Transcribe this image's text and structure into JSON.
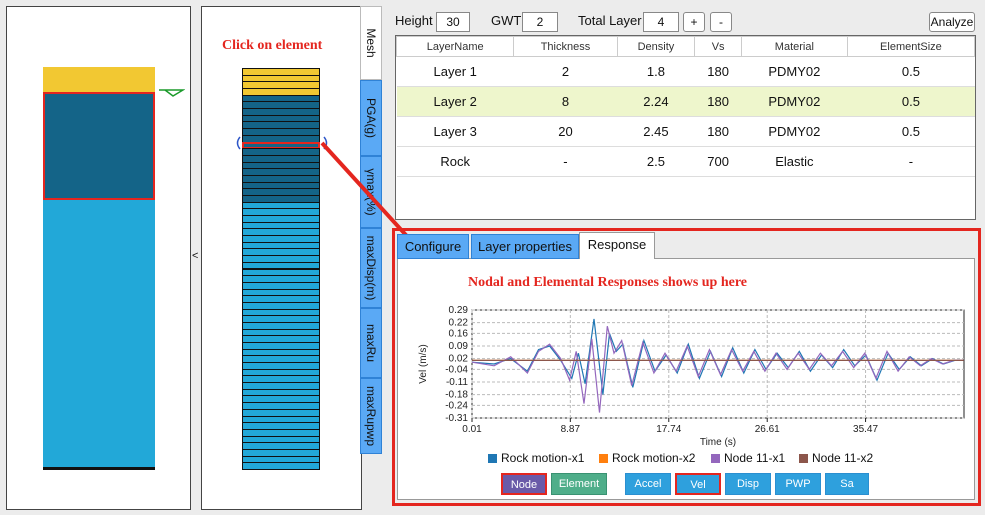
{
  "top_bar": {
    "height_label": "Height",
    "height_value": "30",
    "gwt_label": "GWT",
    "gwt_value": "2",
    "total_layer_label": "Total Layer",
    "total_layer_value": "4",
    "add_label": "+",
    "remove_label": "-",
    "analyze_label": "Analyze"
  },
  "splitter": {
    "collapse_label": "<"
  },
  "annotations": {
    "click_element": "Click on element",
    "responses_here": "Nodal and Elemental Responses shows up here"
  },
  "side_tabs": [
    "Mesh",
    "PGA(g)",
    "γmax(%)",
    "maxDisp(m)",
    "maxRu",
    "maxRupwp"
  ],
  "layer_table": {
    "columns": [
      "LayerName",
      "Thickness",
      "Density",
      "Vs",
      "Material",
      "ElementSize"
    ],
    "rows": [
      [
        "Layer 1",
        "2",
        "1.8",
        "180",
        "PDMY02",
        "0.5"
      ],
      [
        "Layer 2",
        "8",
        "2.24",
        "180",
        "PDMY02",
        "0.5"
      ],
      [
        "Layer 3",
        "20",
        "2.45",
        "180",
        "PDMY02",
        "0.5"
      ],
      [
        "Rock",
        "-",
        "2.5",
        "700",
        "Elastic",
        "-"
      ]
    ],
    "selected_row": 1
  },
  "tabs": [
    "Configure",
    "Layer properties",
    "Response"
  ],
  "active_tab": "Response",
  "colors": {
    "layer1": "#f2c832",
    "layer2": "#146488",
    "layer3": "#22a8d8",
    "accent_red": "#e4261f",
    "tab_blue": "#5aa9f5",
    "selected_row": "#eef6cc"
  },
  "chart_data": {
    "type": "line",
    "xlabel": "Time (s)",
    "ylabel": "Vel (m/s)",
    "xlim": [
      0.01,
      44.34
    ],
    "ylim": [
      -0.31,
      0.29
    ],
    "xticks": [
      "0.01",
      "8.87",
      "17.74",
      "26.61",
      "35.47"
    ],
    "xtick_values": [
      0.01,
      8.87,
      17.74,
      26.61,
      35.47
    ],
    "yticks": [
      "0.29",
      "0.22",
      "0.16",
      "0.09",
      "0.02",
      "-0.04",
      "-0.11",
      "-0.18",
      "-0.24",
      "-0.31"
    ],
    "grid": true,
    "legend_position": "bottom",
    "series": [
      {
        "name": "Rock motion-x1",
        "color": "#1f77b4",
        "x": [
          0.01,
          2,
          3.5,
          5,
          6,
          7,
          8,
          9,
          9.6,
          10.2,
          11,
          11.8,
          12.4,
          13,
          13.6,
          14.5,
          15.5,
          16.5,
          17.5,
          18.5,
          19.5,
          20.5,
          21.5,
          22.5,
          23.5,
          24.5,
          25.5,
          26.5,
          27.5,
          28.5,
          29.5,
          30.5,
          31.5,
          32.5,
          33.5,
          34.5,
          35.5,
          36.5,
          37.5,
          38.5,
          39.5,
          40.5,
          41.5,
          42.5,
          43.5,
          44.3
        ],
        "y": [
          0.0,
          -0.01,
          0.02,
          -0.05,
          0.07,
          0.09,
          0.01,
          -0.09,
          0.05,
          -0.12,
          0.24,
          -0.18,
          0.16,
          0.06,
          0.1,
          -0.14,
          0.12,
          -0.05,
          0.04,
          -0.06,
          0.1,
          -0.09,
          0.06,
          -0.08,
          0.08,
          -0.06,
          0.07,
          -0.04,
          0.05,
          -0.03,
          0.06,
          -0.05,
          0.04,
          -0.03,
          0.07,
          -0.02,
          0.04,
          -0.1,
          0.05,
          -0.04,
          0.03,
          -0.02,
          0.02,
          -0.01,
          0.01,
          0.01
        ]
      },
      {
        "name": "Rock motion-x2",
        "color": "#ff7f0e",
        "x": [
          0.01,
          44.3
        ],
        "y": [
          0.01,
          0.01
        ]
      },
      {
        "name": "Node 11-x1",
        "color": "#9467bd",
        "x": [
          0.01,
          2,
          3.5,
          5,
          6,
          7,
          8,
          8.8,
          9.4,
          10.1,
          10.8,
          11.5,
          12.2,
          12.8,
          13.5,
          14.4,
          15.4,
          16.4,
          17.4,
          18.4,
          19.4,
          20.4,
          21.4,
          22.4,
          23.4,
          24.4,
          25.4,
          26.4,
          27.4,
          28.4,
          29.4,
          30.4,
          31.4,
          32.4,
          33.4,
          34.4,
          35.4,
          36.4,
          37.4,
          38.4,
          39.4,
          40.4,
          41.4,
          42.4,
          43.4,
          44.3
        ],
        "y": [
          0.0,
          -0.02,
          0.03,
          -0.06,
          0.06,
          0.1,
          0.02,
          -0.1,
          0.06,
          -0.23,
          0.13,
          -0.28,
          0.2,
          0.05,
          0.12,
          -0.13,
          0.11,
          -0.06,
          0.05,
          -0.05,
          0.09,
          -0.08,
          0.07,
          -0.07,
          0.07,
          -0.05,
          0.06,
          -0.05,
          0.05,
          -0.04,
          0.05,
          -0.04,
          0.05,
          -0.02,
          0.06,
          -0.03,
          0.05,
          -0.09,
          0.06,
          -0.05,
          0.03,
          -0.02,
          0.02,
          -0.01,
          0.01,
          0.01
        ]
      },
      {
        "name": "Node 11-x2",
        "color": "#8c564b",
        "x": [
          0.01,
          44.3
        ],
        "y": [
          0.01,
          0.01
        ]
      }
    ]
  },
  "response_buttons": [
    "Node",
    "Element",
    "Accel",
    "Vel",
    "Disp",
    "PWP",
    "Sa"
  ],
  "selected_buttons": [
    "Node",
    "Vel"
  ]
}
